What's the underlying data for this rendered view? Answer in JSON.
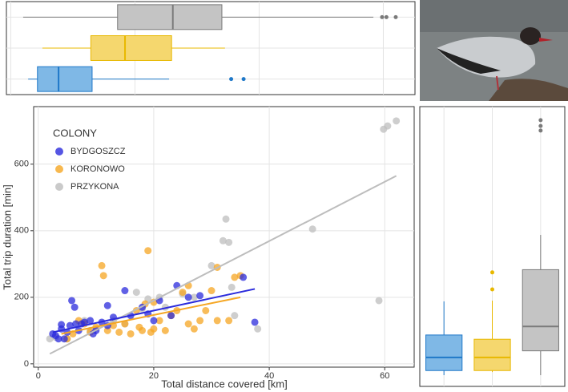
{
  "chart_data": [
    {
      "type": "boxplot",
      "orientation": "horizontal",
      "xlim": [
        -0.7,
        65.1
      ],
      "xticks": [
        0,
        20,
        40,
        60
      ],
      "grid": true,
      "boxes": [
        {
          "color": "#1f78c8",
          "fill": "#7fb8e6",
          "whisker_low": 2.8,
          "q1": 4.3,
          "median": 7.7,
          "q3": 13.1,
          "whisker_high": 25.5,
          "outliers": [
            35.5,
            37.5
          ]
        },
        {
          "color": "#e8b800",
          "fill": "#f5d76e",
          "whisker_low": 5.1,
          "q1": 12.9,
          "median": 18.4,
          "q3": 25.9,
          "whisker_high": 34.5,
          "outliers": []
        },
        {
          "color": "#7a7a7a",
          "fill": "#c4c4c4",
          "whisker_low": 2,
          "q1": 17.2,
          "median": 26.1,
          "q3": 34,
          "whisker_high": 58.4,
          "outliers": [
            59.8,
            60.5,
            62
          ]
        }
      ]
    },
    {
      "type": "scatter",
      "xlabel": "Total distance covered [km]",
      "ylabel": "Total trip duration [min]",
      "xlim": [
        -0.8,
        65.1
      ],
      "ylim": [
        -10,
        773
      ],
      "xticks": [
        0,
        20,
        40,
        60
      ],
      "yticks": [
        0,
        200,
        400,
        600
      ],
      "grid": true,
      "legend_title": "COLONY",
      "legend_position": "upper left",
      "series": [
        {
          "name": "BYDGOSZCZ",
          "color": "#2b2bdc",
          "x": [
            2.5,
            3,
            3.5,
            4,
            4,
            4.5,
            5,
            5.5,
            5.8,
            6.3,
            6.5,
            7,
            7.5,
            8,
            9,
            9.5,
            10,
            11,
            12,
            12,
            13,
            15,
            16,
            18,
            19,
            20,
            21,
            23,
            24,
            26,
            28,
            35.5,
            37.5
          ],
          "values": [
            90,
            85,
            75,
            105,
            118,
            75,
            95,
            115,
            190,
            170,
            120,
            100,
            120,
            125,
            130,
            90,
            100,
            125,
            175,
            115,
            140,
            220,
            145,
            170,
            150,
            130,
            190,
            145,
            235,
            200,
            205,
            260,
            125
          ],
          "trend_x": [
            2.5,
            37.5
          ],
          "trend_y": [
            95,
            225
          ]
        },
        {
          "name": "KORONOWO",
          "color": "#f5a623",
          "x": [
            5,
            6,
            7,
            8,
            9,
            10,
            11,
            11.3,
            12,
            13,
            14,
            15,
            16,
            17,
            17.5,
            18,
            18.5,
            19,
            19.5,
            20,
            20,
            21,
            22,
            23,
            24,
            25,
            26,
            26,
            27,
            28,
            29,
            30,
            31,
            31,
            33,
            34,
            35
          ],
          "values": [
            75,
            90,
            130,
            120,
            95,
            110,
            295,
            265,
            100,
            115,
            95,
            120,
            90,
            160,
            110,
            100,
            180,
            340,
            95,
            105,
            185,
            130,
            100,
            145,
            160,
            215,
            235,
            120,
            105,
            130,
            160,
            220,
            290,
            130,
            130,
            260,
            265
          ],
          "trend_x": [
            4,
            35
          ],
          "trend_y": [
            90,
            200
          ]
        },
        {
          "name": "PRZYKONA",
          "color": "#bdbdbd",
          "x": [
            2,
            3,
            5,
            8,
            9,
            13,
            15,
            17,
            18,
            19,
            21,
            22,
            25,
            27,
            30,
            32,
            32.5,
            33,
            33.5,
            34,
            38,
            47.5,
            59,
            59.8,
            60.5,
            62
          ],
          "values": [
            75,
            80,
            75,
            130,
            100,
            130,
            120,
            215,
            165,
            195,
            200,
            170,
            210,
            200,
            295,
            370,
            435,
            365,
            230,
            145,
            105,
            405,
            190,
            705,
            715,
            730
          ],
          "trend_x": [
            2,
            62
          ],
          "trend_y": [
            30,
            565
          ]
        }
      ]
    },
    {
      "type": "boxplot",
      "orientation": "vertical",
      "ylim": [
        41,
        765
      ],
      "grid": true,
      "boxes": [
        {
          "color": "#1f78c8",
          "fill": "#7fb8e6",
          "whisker_low": 70,
          "q1": 82,
          "median": 116,
          "q3": 174,
          "whisker_high": 261,
          "outliers": []
        },
        {
          "color": "#e8b800",
          "fill": "#f5d76e",
          "whisker_low": 78,
          "q1": 82,
          "median": 116,
          "q3": 163,
          "whisker_high": 263,
          "outliers": [
            292,
            336
          ]
        },
        {
          "color": "#7a7a7a",
          "fill": "#c4c4c4",
          "whisker_low": 70,
          "q1": 133,
          "median": 196,
          "q3": 343,
          "whisker_high": 433,
          "outliers": [
            703,
            715,
            730
          ]
        }
      ]
    }
  ]
}
